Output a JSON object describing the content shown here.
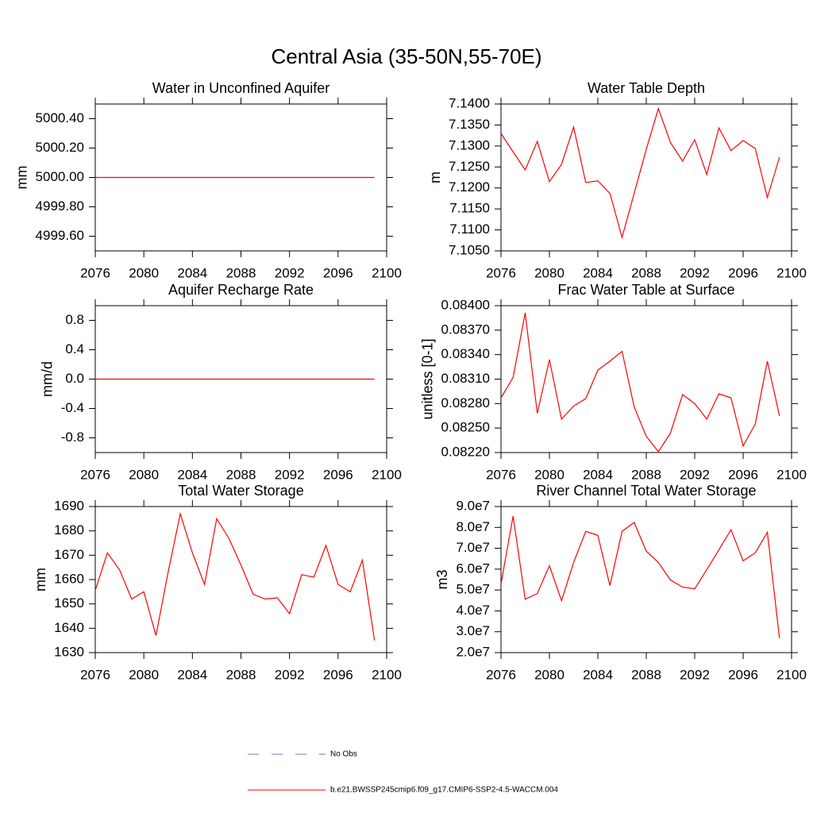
{
  "title": "Central Asia (35-50N,55-70E)",
  "legend": [
    {
      "name": "No Obs",
      "color": "#7070c0",
      "dashed": true
    },
    {
      "name": "b.e21.BWSSP245cmip6.f09_g17.CMIP6-SSP2-4.5-WACCM.004",
      "color": "#ff0000",
      "dashed": false
    }
  ],
  "chart_data": [
    {
      "type": "line",
      "title": "Water in Unconfined Aquifer",
      "y_label": "mm",
      "x": [
        2076,
        2077,
        2078,
        2079,
        2080,
        2081,
        2082,
        2083,
        2084,
        2085,
        2086,
        2087,
        2088,
        2089,
        2090,
        2091,
        2092,
        2093,
        2094,
        2095,
        2096,
        2097,
        2098,
        2099
      ],
      "xlim": [
        2076,
        2100
      ],
      "xticks": [
        2076,
        2080,
        2084,
        2088,
        2092,
        2096,
        2100
      ],
      "ylim": [
        4999.5,
        5000.5
      ],
      "yticks": [
        {
          "value": 4999.6,
          "label": "4999.60"
        },
        {
          "value": 4999.8,
          "label": "4999.80"
        },
        {
          "value": 5000,
          "label": "5000.00"
        },
        {
          "value": 5000.2,
          "label": "5000.20"
        },
        {
          "value": 5000.4,
          "label": "5000.40"
        }
      ],
      "color": "#ff0000",
      "values": [
        5000,
        5000,
        5000,
        5000,
        5000,
        5000,
        5000,
        5000,
        5000,
        5000,
        5000,
        5000,
        5000,
        5000,
        5000,
        5000,
        5000,
        5000,
        5000,
        5000,
        5000,
        5000,
        5000,
        5000
      ]
    },
    {
      "type": "line",
      "title": "Water Table Depth",
      "y_label": "m",
      "x": [
        2076,
        2077,
        2078,
        2079,
        2080,
        2081,
        2082,
        2083,
        2084,
        2085,
        2086,
        2087,
        2088,
        2089,
        2090,
        2091,
        2092,
        2093,
        2094,
        2095,
        2096,
        2097,
        2098,
        2099
      ],
      "xlim": [
        2076,
        2100
      ],
      "xticks": [
        2076,
        2080,
        2084,
        2088,
        2092,
        2096,
        2100
      ],
      "ylim": [
        7.105,
        7.14
      ],
      "yticks": [
        {
          "value": 7.105,
          "label": "7.1050"
        },
        {
          "value": 7.11,
          "label": "7.1100"
        },
        {
          "value": 7.115,
          "label": "7.1150"
        },
        {
          "value": 7.12,
          "label": "7.1200"
        },
        {
          "value": 7.125,
          "label": "7.1250"
        },
        {
          "value": 7.13,
          "label": "7.1300"
        },
        {
          "value": 7.135,
          "label": "7.1350"
        },
        {
          "value": 7.14,
          "label": "7.1400"
        }
      ],
      "color": "#ff0000",
      "values": [
        7.133,
        7.1286,
        7.1243,
        7.1311,
        7.1215,
        7.1256,
        7.1345,
        7.1213,
        7.1217,
        7.1187,
        7.1082,
        7.1187,
        7.1292,
        7.1389,
        7.1308,
        7.1264,
        7.1315,
        7.1232,
        7.1343,
        7.1289,
        7.1313,
        7.1294,
        7.1177,
        7.1273
      ]
    },
    {
      "type": "line",
      "title": "Aquifer Recharge Rate",
      "y_label": "mm/d",
      "x": [
        2076,
        2077,
        2078,
        2079,
        2080,
        2081,
        2082,
        2083,
        2084,
        2085,
        2086,
        2087,
        2088,
        2089,
        2090,
        2091,
        2092,
        2093,
        2094,
        2095,
        2096,
        2097,
        2098,
        2099
      ],
      "xlim": [
        2076,
        2100
      ],
      "xticks": [
        2076,
        2080,
        2084,
        2088,
        2092,
        2096,
        2100
      ],
      "ylim": [
        -1,
        1
      ],
      "yticks": [
        -0.8,
        -0.4,
        {
          "value": 0,
          "label": "0.0"
        },
        0.4,
        0.8
      ],
      "color": "#ff0000",
      "values": [
        0,
        0,
        0,
        0,
        0,
        0,
        0,
        0,
        0,
        0,
        0,
        0,
        0,
        0,
        0,
        0,
        0,
        0,
        0,
        0,
        0,
        0,
        0,
        0
      ]
    },
    {
      "type": "line",
      "title": "Frac Water Table at Surface",
      "y_label": "unitless [0-1]",
      "x": [
        2076,
        2077,
        2078,
        2079,
        2080,
        2081,
        2082,
        2083,
        2084,
        2085,
        2086,
        2087,
        2088,
        2089,
        2090,
        2091,
        2092,
        2093,
        2094,
        2095,
        2096,
        2097,
        2098,
        2099
      ],
      "xlim": [
        2076,
        2100
      ],
      "xticks": [
        2076,
        2080,
        2084,
        2088,
        2092,
        2096,
        2100
      ],
      "ylim": [
        0.0822,
        0.084
      ],
      "yticks": [
        {
          "value": 0.0822,
          "label": "0.08220"
        },
        {
          "value": 0.0825,
          "label": "0.08250"
        },
        {
          "value": 0.0828,
          "label": "0.08280"
        },
        {
          "value": 0.0831,
          "label": "0.08310"
        },
        {
          "value": 0.0834,
          "label": "0.08340"
        },
        {
          "value": 0.0837,
          "label": "0.08370"
        },
        {
          "value": 0.084,
          "label": "0.08400"
        }
      ],
      "color": "#ff0000",
      "values": [
        0.08287,
        0.08312,
        0.08391,
        0.08268,
        0.08334,
        0.08261,
        0.08277,
        0.08286,
        0.08321,
        0.08332,
        0.08344,
        0.08276,
        0.0824,
        0.08221,
        0.08244,
        0.08291,
        0.0828,
        0.08261,
        0.08292,
        0.08287,
        0.08228,
        0.08255,
        0.08332,
        0.08265
      ]
    },
    {
      "type": "line",
      "title": "Total Water Storage",
      "y_label": "mm",
      "x": [
        2076,
        2077,
        2078,
        2079,
        2080,
        2081,
        2082,
        2083,
        2084,
        2085,
        2086,
        2087,
        2088,
        2089,
        2090,
        2091,
        2092,
        2093,
        2094,
        2095,
        2096,
        2097,
        2098,
        2099
      ],
      "xlim": [
        2076,
        2100
      ],
      "xticks": [
        2076,
        2080,
        2084,
        2088,
        2092,
        2096,
        2100
      ],
      "ylim": [
        1630,
        1690
      ],
      "yticks": [
        1630,
        1640,
        1650,
        1660,
        1670,
        1680,
        1690
      ],
      "color": "#ff0000",
      "values": [
        1655.6,
        1671,
        1664,
        1652,
        1655,
        1637,
        1663,
        1687,
        1671,
        1658,
        1685,
        1677,
        1666,
        1654,
        1652,
        1652.5,
        1646,
        1662,
        1661,
        1674,
        1658,
        1655,
        1668,
        1635
      ]
    },
    {
      "type": "line",
      "title": "River Channel Total Water Storage",
      "y_label": "m3",
      "x": [
        2076,
        2077,
        2078,
        2079,
        2080,
        2081,
        2082,
        2083,
        2084,
        2085,
        2086,
        2087,
        2088,
        2089,
        2090,
        2091,
        2092,
        2093,
        2094,
        2095,
        2096,
        2097,
        2098,
        2099
      ],
      "xlim": [
        2076,
        2100
      ],
      "xticks": [
        2076,
        2080,
        2084,
        2088,
        2092,
        2096,
        2100
      ],
      "ylim": [
        20000000,
        90000000
      ],
      "yticks": [
        {
          "value": 20000000,
          "label": "2.0e7"
        },
        {
          "value": 30000000,
          "label": "3.0e7"
        },
        {
          "value": 40000000,
          "label": "4.0e7"
        },
        {
          "value": 50000000,
          "label": "5.0e7"
        },
        {
          "value": 60000000,
          "label": "6.0e7"
        },
        {
          "value": 70000000,
          "label": "7.0e7"
        },
        {
          "value": 80000000,
          "label": "8.0e7"
        },
        {
          "value": 90000000,
          "label": "9.0e7"
        }
      ],
      "color": "#ff0000",
      "values": [
        52900000,
        85400000,
        45600000,
        48300000,
        61700000,
        44900000,
        63200000,
        78100000,
        76200000,
        52100000,
        78100000,
        82400000,
        68600000,
        63200000,
        54800000,
        51400000,
        50600000,
        59800000,
        69300000,
        78900000,
        64000000,
        67800000,
        77700000,
        26900000
      ]
    }
  ]
}
